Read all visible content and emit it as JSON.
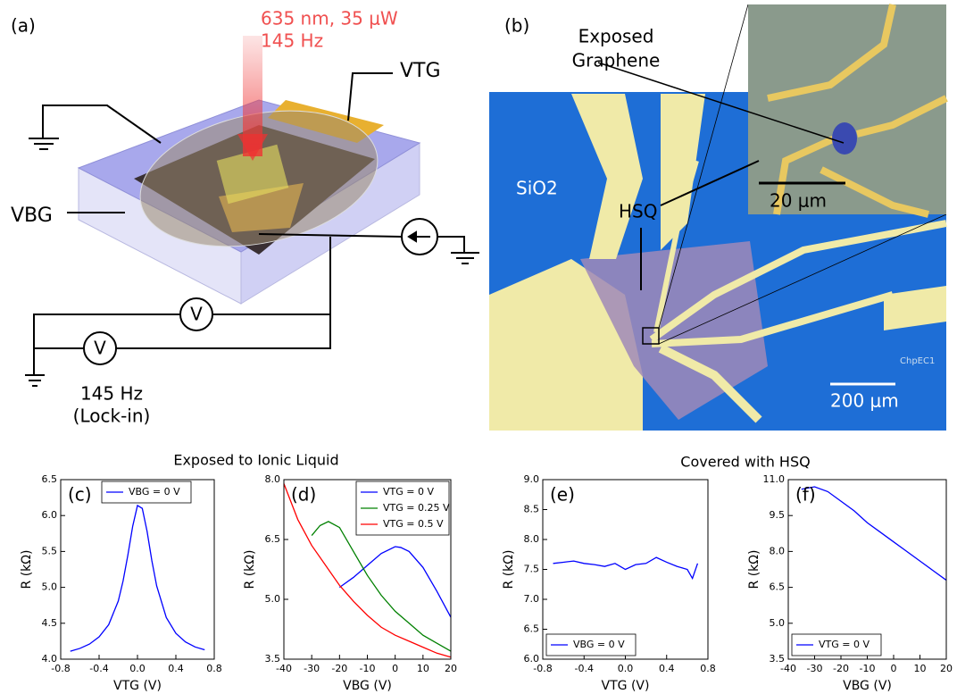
{
  "panel_a": {
    "label": "(a)",
    "laser": [
      "635 nm, 35 μW",
      "145 Hz"
    ],
    "top_gate": "VTG",
    "back_gate": "VBG",
    "voltmeters": [
      "V",
      "V"
    ],
    "lockin": [
      "145 Hz",
      "(Lock-in)"
    ]
  },
  "panel_b": {
    "label": "(b)",
    "exposed": [
      "Exposed",
      "Graphene"
    ],
    "substrate": "SiO2",
    "hsq": "HSQ",
    "inset_scale": "20 μm",
    "scale": "200 μm",
    "chip": "ChpEC1"
  },
  "group_titles": [
    "Exposed to Ionic Liquid",
    "Covered with HSQ"
  ],
  "chart_data": [
    {
      "type": "line",
      "label": "(c)",
      "xlabel": "VTG (V)",
      "ylabel": "R (kΩ)",
      "xlim": [
        -0.8,
        0.8
      ],
      "ylim": [
        4.0,
        6.5
      ],
      "xticks": [
        -0.8,
        -0.4,
        {
          "value": 0,
          "label": "0.0"
        },
        0.4,
        0.8
      ],
      "yticks": [
        {
          "value": 4,
          "label": "4.0"
        },
        4.5,
        {
          "value": 5,
          "label": "5.0"
        },
        5.5,
        {
          "value": 6,
          "label": "6.0"
        },
        6.5
      ],
      "legend": "upper center",
      "series": [
        {
          "name": "VBG = 0 V",
          "color": "#0000ff",
          "x": [
            -0.7,
            -0.6,
            -0.5,
            -0.4,
            -0.3,
            -0.2,
            -0.15,
            -0.1,
            -0.05,
            0,
            0.05,
            0.1,
            0.15,
            0.2,
            0.3,
            0.4,
            0.5,
            0.6,
            0.7
          ],
          "values": [
            4.11,
            4.15,
            4.21,
            4.31,
            4.48,
            4.81,
            5.09,
            5.45,
            5.85,
            6.14,
            6.1,
            5.78,
            5.37,
            5.02,
            4.58,
            4.36,
            4.24,
            4.17,
            4.13
          ]
        }
      ]
    },
    {
      "type": "line",
      "label": "(d)",
      "xlabel": "VBG (V)",
      "ylabel": "R (kΩ)",
      "xlim": [
        -40,
        20
      ],
      "ylim": [
        3.5,
        8.0
      ],
      "xticks": [
        -40,
        -30,
        -20,
        -10,
        0,
        10,
        20
      ],
      "yticks": [
        3.5,
        {
          "value": 5,
          "label": "5.0"
        },
        6.5,
        {
          "value": 8,
          "label": "8.0"
        }
      ],
      "legend": "upper right",
      "series": [
        {
          "name": "VTG = 0 V",
          "color": "#0000ff",
          "x": [
            -20,
            -15,
            -10,
            -5,
            0,
            2,
            5,
            10,
            15,
            20
          ],
          "values": [
            5.3,
            5.55,
            5.85,
            6.15,
            6.32,
            6.3,
            6.2,
            5.8,
            5.2,
            4.55
          ]
        },
        {
          "name": "VTG = 0.25 V",
          "color": "#008000",
          "x": [
            -30,
            -27,
            -24,
            -20,
            -15,
            -10,
            -5,
            0,
            5,
            10,
            15,
            20
          ],
          "values": [
            6.6,
            6.85,
            6.95,
            6.8,
            6.2,
            5.6,
            5.1,
            4.7,
            4.4,
            4.1,
            3.9,
            3.7
          ]
        },
        {
          "name": "VTG = 0.5 V",
          "color": "#ff0000",
          "x": [
            -40,
            -35,
            -30,
            -25,
            -20,
            -15,
            -10,
            -5,
            0,
            5,
            10,
            15,
            20
          ],
          "values": [
            7.9,
            7.0,
            6.35,
            5.85,
            5.35,
            4.95,
            4.6,
            4.3,
            4.1,
            3.95,
            3.8,
            3.65,
            3.55
          ]
        }
      ]
    },
    {
      "type": "line",
      "label": "(e)",
      "xlabel": "VTG (V)",
      "ylabel": "R (kΩ)",
      "xlim": [
        -0.8,
        0.8
      ],
      "ylim": [
        6.0,
        9.0
      ],
      "xticks": [
        -0.8,
        -0.4,
        {
          "value": 0,
          "label": "0.0"
        },
        0.4,
        0.8
      ],
      "yticks": [
        {
          "value": 6,
          "label": "6.0"
        },
        6.5,
        {
          "value": 7,
          "label": "7.0"
        },
        7.5,
        {
          "value": 8,
          "label": "8.0"
        },
        8.5,
        {
          "value": 9,
          "label": "9.0"
        }
      ],
      "legend": "lower left",
      "series": [
        {
          "name": "VBG = 0 V",
          "color": "#0000ff",
          "x": [
            -0.7,
            -0.6,
            -0.5,
            -0.4,
            -0.3,
            -0.2,
            -0.1,
            0,
            0.1,
            0.2,
            0.3,
            0.4,
            0.5,
            0.6,
            0.65,
            0.7
          ],
          "values": [
            7.6,
            7.62,
            7.64,
            7.6,
            7.58,
            7.55,
            7.6,
            7.5,
            7.58,
            7.6,
            7.7,
            7.62,
            7.55,
            7.5,
            7.35,
            7.6
          ]
        }
      ]
    },
    {
      "type": "line",
      "label": "(f)",
      "xlabel": "VBG (V)",
      "ylabel": "R (kΩ)",
      "xlim": [
        -40,
        20
      ],
      "ylim": [
        3.5,
        11.0
      ],
      "xticks": [
        -40,
        -30,
        -20,
        -10,
        0,
        10,
        20
      ],
      "yticks": [
        3.5,
        {
          "value": 5,
          "label": "5.0"
        },
        6.5,
        {
          "value": 8,
          "label": "8.0"
        },
        9.5,
        {
          "value": 11,
          "label": "11.0"
        }
      ],
      "legend": "lower left",
      "series": [
        {
          "name": "VTG = 0 V",
          "color": "#0000ff",
          "x": [
            -35,
            -30,
            -25,
            -20,
            -15,
            -10,
            -5,
            0,
            5,
            10,
            15,
            20
          ],
          "values": [
            10.6,
            10.7,
            10.5,
            10.1,
            9.7,
            9.2,
            8.8,
            8.4,
            8.0,
            7.6,
            7.2,
            6.8
          ]
        }
      ]
    }
  ]
}
